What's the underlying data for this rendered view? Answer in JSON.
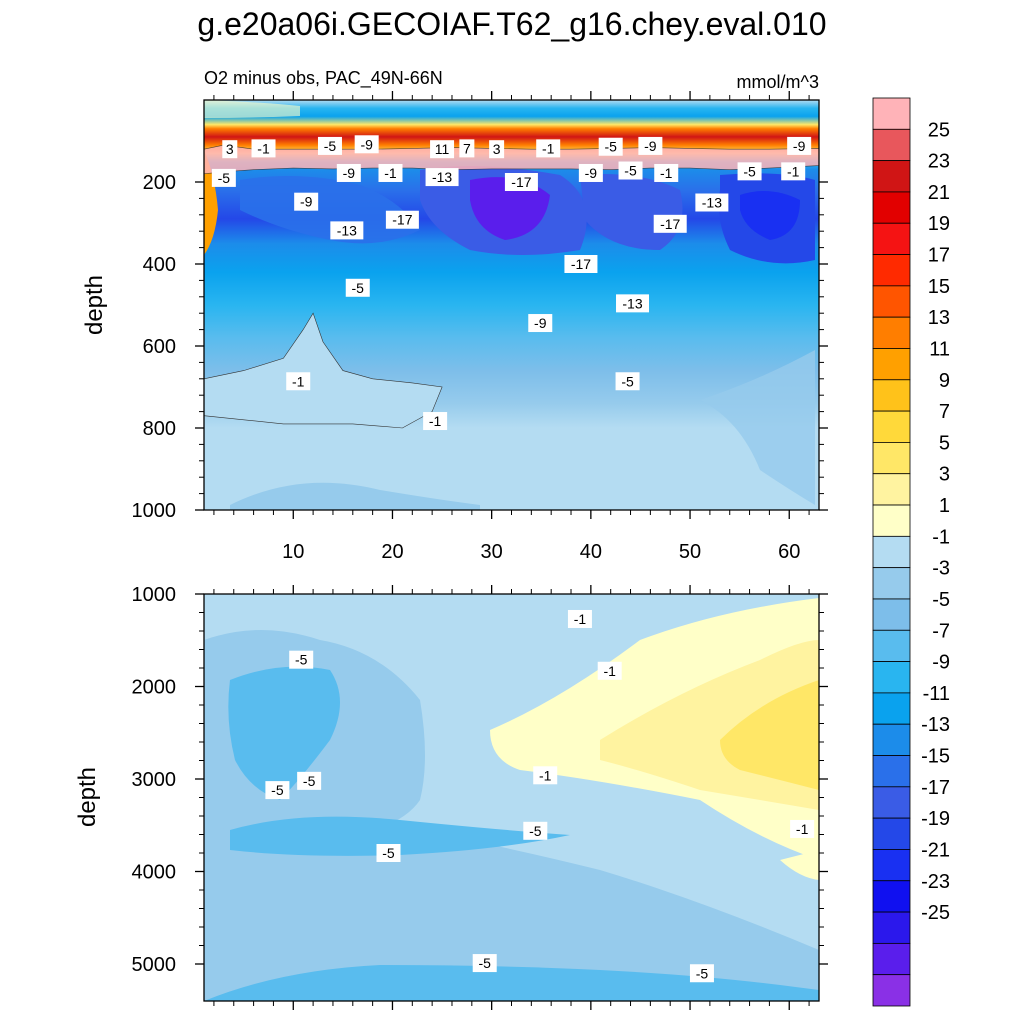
{
  "title": "g.e20a06i.GECOIAF.T62_g16.chey.eval.010",
  "colors": {
    "levels": [
      "#FFB3B8",
      "#E8575C",
      "#D01515",
      "#E20000",
      "#F51313",
      "#FF2A00",
      "#FF5500",
      "#FF7E00",
      "#FFA000",
      "#FFC21A",
      "#FFD93A",
      "#FFE767",
      "#FFF3A0",
      "#FFFFC8",
      "#B4DCF2",
      "#96CBEC",
      "#7DBEEA",
      "#59BCEE",
      "#29B5F0",
      "#0AA2EE",
      "#1C8CEA",
      "#2A70EA",
      "#3A5CE6",
      "#2448E8",
      "#1930F2",
      "#1010F0",
      "#2B18EC",
      "#5A1EEC",
      "#8A30E6"
    ]
  },
  "chart_data": [
    {
      "type": "heatmap",
      "panel": "upper",
      "title_left": "O2 minus obs, PAC_49N-66N",
      "title_right": "mmol/m^3",
      "xlabel": "",
      "ylabel": "depth",
      "xlim": [
        1,
        63
      ],
      "ylim": [
        0,
        1000
      ],
      "y_reversed": true,
      "x_ticks": [
        "10",
        "20",
        "30",
        "40",
        "50",
        "60"
      ],
      "x_tick_values": [
        10,
        20,
        30,
        40,
        50,
        60
      ],
      "y_ticks": [
        "200",
        "400",
        "600",
        "800",
        "1000"
      ],
      "y_tick_values": [
        200,
        400,
        600,
        800,
        1000
      ],
      "contour_bands": [
        {
          "level": -1,
          "points": [
            [
              1,
              680
            ],
            [
              5,
              660
            ],
            [
              9,
              630
            ],
            [
              11,
              560
            ],
            [
              12,
              520
            ],
            [
              13,
              590
            ],
            [
              15,
              660
            ],
            [
              18,
              680
            ],
            [
              22,
              690
            ],
            [
              25,
              700
            ],
            [
              24,
              760
            ],
            [
              21,
              800
            ],
            [
              16,
              790
            ],
            [
              9,
              790
            ],
            [
              5,
              780
            ],
            [
              1,
              770
            ]
          ]
        },
        {
          "level": 1,
          "points": [
            [
              1,
              120
            ],
            [
              3,
              110
            ],
            [
              6,
              120
            ],
            [
              10,
              120
            ],
            [
              14,
              120
            ],
            [
              18,
              120
            ],
            [
              22,
              118
            ],
            [
              26,
              116
            ],
            [
              30,
              118
            ],
            [
              34,
              120
            ],
            [
              38,
              120
            ],
            [
              42,
              118
            ],
            [
              46,
              116
            ],
            [
              50,
              118
            ],
            [
              54,
              120
            ],
            [
              58,
              120
            ],
            [
              63,
              118
            ],
            [
              63,
              160
            ],
            [
              58,
              166
            ],
            [
              54,
              170
            ],
            [
              50,
              166
            ],
            [
              46,
              166
            ],
            [
              42,
              170
            ],
            [
              38,
              168
            ],
            [
              34,
              168
            ],
            [
              30,
              168
            ],
            [
              26,
              170
            ],
            [
              22,
              166
            ],
            [
              18,
              166
            ],
            [
              14,
              168
            ],
            [
              10,
              166
            ],
            [
              6,
              170
            ],
            [
              3,
              175
            ],
            [
              1,
              180
            ]
          ]
        }
      ],
      "contour_labels": [
        {
          "x": 3.6,
          "y": 120,
          "text": "3"
        },
        {
          "x": 7,
          "y": 118,
          "text": "-1"
        },
        {
          "x": 13.7,
          "y": 112,
          "text": "-5"
        },
        {
          "x": 17.4,
          "y": 108,
          "text": "-9"
        },
        {
          "x": 25,
          "y": 120,
          "text": "11"
        },
        {
          "x": 27.5,
          "y": 118,
          "text": "7"
        },
        {
          "x": 30.5,
          "y": 120,
          "text": "3"
        },
        {
          "x": 35.7,
          "y": 118,
          "text": "-1"
        },
        {
          "x": 42,
          "y": 114,
          "text": "-5"
        },
        {
          "x": 46,
          "y": 112,
          "text": "-9"
        },
        {
          "x": 61,
          "y": 112,
          "text": "-9"
        },
        {
          "x": 3,
          "y": 190,
          "text": "-5"
        },
        {
          "x": 15.6,
          "y": 178,
          "text": "-9"
        },
        {
          "x": 19.8,
          "y": 178,
          "text": "-1"
        },
        {
          "x": 25,
          "y": 188,
          "text": "-13"
        },
        {
          "x": 33,
          "y": 200,
          "text": "-17"
        },
        {
          "x": 40,
          "y": 178,
          "text": "-9"
        },
        {
          "x": 44,
          "y": 172,
          "text": "-5"
        },
        {
          "x": 47.6,
          "y": 178,
          "text": "-1"
        },
        {
          "x": 52.2,
          "y": 250,
          "text": "-13"
        },
        {
          "x": 56,
          "y": 174,
          "text": "-5"
        },
        {
          "x": 60.4,
          "y": 174,
          "text": "-1"
        },
        {
          "x": 11.3,
          "y": 248,
          "text": "-9"
        },
        {
          "x": 21,
          "y": 292,
          "text": "-17"
        },
        {
          "x": 15.4,
          "y": 318,
          "text": "-13"
        },
        {
          "x": 48,
          "y": 302,
          "text": "-17"
        },
        {
          "x": 39,
          "y": 400,
          "text": "-17"
        },
        {
          "x": 16.5,
          "y": 458,
          "text": "-5"
        },
        {
          "x": 44.2,
          "y": 496,
          "text": "-13"
        },
        {
          "x": 34.9,
          "y": 544,
          "text": "-9"
        },
        {
          "x": 10.5,
          "y": 686,
          "text": "-1"
        },
        {
          "x": 43.7,
          "y": 686,
          "text": "-5"
        },
        {
          "x": 24.3,
          "y": 783,
          "text": "-1"
        }
      ]
    },
    {
      "type": "heatmap",
      "panel": "lower",
      "xlabel": "",
      "ylabel": "depth",
      "xlim": [
        1,
        63
      ],
      "ylim": [
        1000,
        5400
      ],
      "y_reversed": true,
      "y_ticks": [
        "1000",
        "2000",
        "3000",
        "4000",
        "5000"
      ],
      "y_tick_values": [
        1000,
        2000,
        3000,
        4000,
        5000
      ],
      "contour_labels": [
        {
          "x": 38.9,
          "y": 1270,
          "text": "-1"
        },
        {
          "x": 41.9,
          "y": 1830,
          "text": "-1"
        },
        {
          "x": 10.8,
          "y": 1710,
          "text": "-5"
        },
        {
          "x": 8.4,
          "y": 3120,
          "text": "-5"
        },
        {
          "x": 11.6,
          "y": 3020,
          "text": "-5"
        },
        {
          "x": 35.4,
          "y": 2960,
          "text": "-1"
        },
        {
          "x": 61.3,
          "y": 3540,
          "text": "-1"
        },
        {
          "x": 34.4,
          "y": 3560,
          "text": "-5"
        },
        {
          "x": 19.6,
          "y": 3800,
          "text": "-5"
        },
        {
          "x": 29.3,
          "y": 4990,
          "text": "-5"
        },
        {
          "x": 51.2,
          "y": 5100,
          "text": "-5"
        }
      ]
    }
  ],
  "colorbar": {
    "labels": [
      "25",
      "23",
      "21",
      "19",
      "17",
      "15",
      "13",
      "11",
      "9",
      "7",
      "5",
      "3",
      "1",
      "-1",
      "-3",
      "-5",
      "-7",
      "-9",
      "-11",
      "-13",
      "-15",
      "-17",
      "-19",
      "-21",
      "-23",
      "-25"
    ]
  }
}
